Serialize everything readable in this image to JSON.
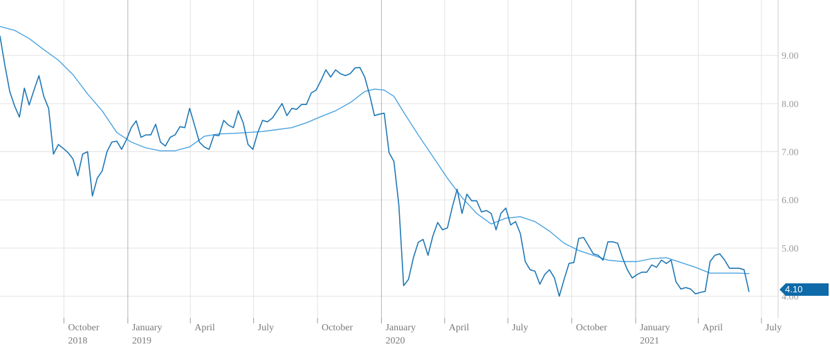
{
  "colors": {
    "weekly": "#1f77b4",
    "average": "#4aa3e0",
    "badge": "#0e6aa8",
    "grid": "#e3e3e3"
  },
  "chart_data": {
    "type": "line",
    "x_ticks": [
      {
        "label": "October",
        "sub": "2018",
        "date": "2018-10-01",
        "year_start": false
      },
      {
        "label": "January",
        "sub": "2019",
        "date": "2019-01-01",
        "year_start": true
      },
      {
        "label": "April",
        "sub": "",
        "date": "2019-04-01",
        "year_start": false
      },
      {
        "label": "July",
        "sub": "",
        "date": "2019-07-01",
        "year_start": false
      },
      {
        "label": "October",
        "sub": "",
        "date": "2019-10-01",
        "year_start": false
      },
      {
        "label": "January",
        "sub": "2020",
        "date": "2020-01-01",
        "year_start": true
      },
      {
        "label": "April",
        "sub": "",
        "date": "2020-04-01",
        "year_start": false
      },
      {
        "label": "July",
        "sub": "",
        "date": "2020-07-01",
        "year_start": false
      },
      {
        "label": "October",
        "sub": "",
        "date": "2020-10-01",
        "year_start": false
      },
      {
        "label": "January",
        "sub": "2021",
        "date": "2021-01-01",
        "year_start": true
      },
      {
        "label": "April",
        "sub": "",
        "date": "2021-04-01",
        "year_start": false
      },
      {
        "label": "July",
        "sub": "",
        "date": "2021-07-01",
        "year_start": false
      }
    ],
    "y_ticks": [
      "4.00",
      "5.00",
      "6.00",
      "7.00",
      "8.00",
      "9.00"
    ],
    "ylim": [
      3.55,
      10.15
    ],
    "xlim": [
      "2018-07-01",
      "2021-07-25"
    ],
    "grid": true,
    "current_value_label": "4.10",
    "series": [
      {
        "key": "weekly",
        "points": [
          [
            "2018-07-01",
            9.4
          ],
          [
            "2018-07-08",
            8.8
          ],
          [
            "2018-07-15",
            8.25
          ],
          [
            "2018-07-22",
            7.95
          ],
          [
            "2018-07-29",
            7.72
          ],
          [
            "2018-08-05",
            8.32
          ],
          [
            "2018-08-12",
            7.97
          ],
          [
            "2018-08-19",
            8.28
          ],
          [
            "2018-08-26",
            8.58
          ],
          [
            "2018-09-02",
            8.15
          ],
          [
            "2018-09-09",
            7.9
          ],
          [
            "2018-09-16",
            6.95
          ],
          [
            "2018-09-23",
            7.15
          ],
          [
            "2018-09-30",
            7.07
          ],
          [
            "2018-10-07",
            6.98
          ],
          [
            "2018-10-14",
            6.85
          ],
          [
            "2018-10-21",
            6.5
          ],
          [
            "2018-10-28",
            6.95
          ],
          [
            "2018-11-04",
            7.0
          ],
          [
            "2018-11-11",
            6.08
          ],
          [
            "2018-11-18",
            6.45
          ],
          [
            "2018-11-25",
            6.6
          ],
          [
            "2018-12-02",
            7.0
          ],
          [
            "2018-12-09",
            7.2
          ],
          [
            "2018-12-16",
            7.22
          ],
          [
            "2018-12-23",
            7.05
          ],
          [
            "2018-12-30",
            7.25
          ],
          [
            "2019-01-06",
            7.5
          ],
          [
            "2019-01-13",
            7.64
          ],
          [
            "2019-01-20",
            7.3
          ],
          [
            "2019-01-27",
            7.35
          ],
          [
            "2019-02-03",
            7.35
          ],
          [
            "2019-02-10",
            7.57
          ],
          [
            "2019-02-17",
            7.2
          ],
          [
            "2019-02-24",
            7.12
          ],
          [
            "2019-03-03",
            7.3
          ],
          [
            "2019-03-10",
            7.35
          ],
          [
            "2019-03-17",
            7.52
          ],
          [
            "2019-03-24",
            7.5
          ],
          [
            "2019-03-31",
            7.9
          ],
          [
            "2019-04-07",
            7.55
          ],
          [
            "2019-04-14",
            7.2
          ],
          [
            "2019-04-21",
            7.1
          ],
          [
            "2019-04-28",
            7.05
          ],
          [
            "2019-05-05",
            7.35
          ],
          [
            "2019-05-12",
            7.33
          ],
          [
            "2019-05-19",
            7.65
          ],
          [
            "2019-05-26",
            7.55
          ],
          [
            "2019-06-02",
            7.5
          ],
          [
            "2019-06-09",
            7.85
          ],
          [
            "2019-06-16",
            7.6
          ],
          [
            "2019-06-23",
            7.15
          ],
          [
            "2019-06-30",
            7.05
          ],
          [
            "2019-07-07",
            7.4
          ],
          [
            "2019-07-14",
            7.65
          ],
          [
            "2019-07-21",
            7.62
          ],
          [
            "2019-07-28",
            7.7
          ],
          [
            "2019-08-04",
            7.85
          ],
          [
            "2019-08-11",
            8.0
          ],
          [
            "2019-08-18",
            7.75
          ],
          [
            "2019-08-25",
            7.9
          ],
          [
            "2019-09-01",
            7.88
          ],
          [
            "2019-09-08",
            7.98
          ],
          [
            "2019-09-15",
            7.98
          ],
          [
            "2019-09-22",
            8.22
          ],
          [
            "2019-09-29",
            8.28
          ],
          [
            "2019-10-06",
            8.48
          ],
          [
            "2019-10-13",
            8.7
          ],
          [
            "2019-10-20",
            8.55
          ],
          [
            "2019-10-27",
            8.7
          ],
          [
            "2019-11-03",
            8.62
          ],
          [
            "2019-11-10",
            8.58
          ],
          [
            "2019-11-17",
            8.62
          ],
          [
            "2019-11-24",
            8.74
          ],
          [
            "2019-12-01",
            8.75
          ],
          [
            "2019-12-08",
            8.55
          ],
          [
            "2019-12-15",
            8.18
          ],
          [
            "2019-12-22",
            7.75
          ],
          [
            "2019-12-29",
            7.78
          ],
          [
            "2020-01-05",
            7.8
          ],
          [
            "2020-01-12",
            6.98
          ],
          [
            "2020-01-19",
            6.8
          ],
          [
            "2020-01-26",
            5.9
          ],
          [
            "2020-02-02",
            4.22
          ],
          [
            "2020-02-09",
            4.35
          ],
          [
            "2020-02-16",
            4.8
          ],
          [
            "2020-02-23",
            5.12
          ],
          [
            "2020-03-01",
            5.18
          ],
          [
            "2020-03-08",
            4.85
          ],
          [
            "2020-03-15",
            5.25
          ],
          [
            "2020-03-22",
            5.53
          ],
          [
            "2020-03-29",
            5.38
          ],
          [
            "2020-04-05",
            5.42
          ],
          [
            "2020-04-12",
            5.85
          ],
          [
            "2020-04-19",
            6.22
          ],
          [
            "2020-04-26",
            5.72
          ],
          [
            "2020-05-03",
            6.12
          ],
          [
            "2020-05-10",
            5.98
          ],
          [
            "2020-05-17",
            5.98
          ],
          [
            "2020-05-24",
            5.75
          ],
          [
            "2020-05-31",
            5.78
          ],
          [
            "2020-06-07",
            5.72
          ],
          [
            "2020-06-14",
            5.38
          ],
          [
            "2020-06-21",
            5.72
          ],
          [
            "2020-06-28",
            5.83
          ],
          [
            "2020-07-05",
            5.48
          ],
          [
            "2020-07-12",
            5.55
          ],
          [
            "2020-07-19",
            5.3
          ],
          [
            "2020-07-26",
            4.72
          ],
          [
            "2020-08-02",
            4.55
          ],
          [
            "2020-08-09",
            4.52
          ],
          [
            "2020-08-16",
            4.25
          ],
          [
            "2020-08-23",
            4.45
          ],
          [
            "2020-08-30",
            4.55
          ],
          [
            "2020-09-06",
            4.38
          ],
          [
            "2020-09-13",
            4.0
          ],
          [
            "2020-09-20",
            4.35
          ],
          [
            "2020-09-27",
            4.68
          ],
          [
            "2020-10-04",
            4.7
          ],
          [
            "2020-10-11",
            5.2
          ],
          [
            "2020-10-18",
            5.22
          ],
          [
            "2020-10-25",
            5.05
          ],
          [
            "2020-11-01",
            4.88
          ],
          [
            "2020-11-08",
            4.85
          ],
          [
            "2020-11-15",
            4.75
          ],
          [
            "2020-11-22",
            5.13
          ],
          [
            "2020-11-29",
            5.13
          ],
          [
            "2020-12-06",
            5.1
          ],
          [
            "2020-12-13",
            4.8
          ],
          [
            "2020-12-20",
            4.55
          ],
          [
            "2020-12-27",
            4.38
          ],
          [
            "2021-01-03",
            4.45
          ],
          [
            "2021-01-10",
            4.5
          ],
          [
            "2021-01-17",
            4.5
          ],
          [
            "2021-01-24",
            4.65
          ],
          [
            "2021-01-31",
            4.6
          ],
          [
            "2021-02-07",
            4.75
          ],
          [
            "2021-02-14",
            4.68
          ],
          [
            "2021-02-21",
            4.75
          ],
          [
            "2021-02-28",
            4.3
          ],
          [
            "2021-03-07",
            4.15
          ],
          [
            "2021-03-14",
            4.18
          ],
          [
            "2021-03-21",
            4.15
          ],
          [
            "2021-03-28",
            4.05
          ],
          [
            "2021-04-04",
            4.08
          ],
          [
            "2021-04-11",
            4.1
          ],
          [
            "2021-04-18",
            4.72
          ],
          [
            "2021-04-25",
            4.85
          ],
          [
            "2021-05-02",
            4.88
          ],
          [
            "2021-05-09",
            4.75
          ],
          [
            "2021-05-16",
            4.58
          ],
          [
            "2021-05-23",
            4.58
          ],
          [
            "2021-05-30",
            4.58
          ],
          [
            "2021-06-06",
            4.55
          ],
          [
            "2021-06-13",
            4.1
          ]
        ]
      },
      {
        "key": "average",
        "points": [
          [
            "2018-07-01",
            9.6
          ],
          [
            "2018-07-22",
            9.52
          ],
          [
            "2018-08-12",
            9.35
          ],
          [
            "2018-09-02",
            9.12
          ],
          [
            "2018-09-23",
            8.9
          ],
          [
            "2018-10-14",
            8.6
          ],
          [
            "2018-11-04",
            8.2
          ],
          [
            "2018-11-25",
            7.85
          ],
          [
            "2018-12-16",
            7.4
          ],
          [
            "2019-01-06",
            7.2
          ],
          [
            "2019-01-27",
            7.08
          ],
          [
            "2019-02-17",
            7.02
          ],
          [
            "2019-03-10",
            7.02
          ],
          [
            "2019-03-31",
            7.1
          ],
          [
            "2019-04-21",
            7.32
          ],
          [
            "2019-05-12",
            7.37
          ],
          [
            "2019-06-02",
            7.38
          ],
          [
            "2019-06-23",
            7.4
          ],
          [
            "2019-07-14",
            7.42
          ],
          [
            "2019-08-04",
            7.46
          ],
          [
            "2019-08-25",
            7.5
          ],
          [
            "2019-09-15",
            7.6
          ],
          [
            "2019-10-06",
            7.73
          ],
          [
            "2019-10-27",
            7.85
          ],
          [
            "2019-11-17",
            8.02
          ],
          [
            "2019-12-08",
            8.25
          ],
          [
            "2019-12-22",
            8.3
          ],
          [
            "2020-01-05",
            8.28
          ],
          [
            "2020-01-19",
            8.15
          ],
          [
            "2020-02-02",
            7.82
          ],
          [
            "2020-02-23",
            7.35
          ],
          [
            "2020-03-15",
            6.9
          ],
          [
            "2020-04-05",
            6.45
          ],
          [
            "2020-04-26",
            6.05
          ],
          [
            "2020-05-17",
            5.72
          ],
          [
            "2020-06-07",
            5.5
          ],
          [
            "2020-06-28",
            5.62
          ],
          [
            "2020-07-19",
            5.65
          ],
          [
            "2020-08-09",
            5.55
          ],
          [
            "2020-08-30",
            5.35
          ],
          [
            "2020-09-20",
            5.1
          ],
          [
            "2020-10-11",
            4.95
          ],
          [
            "2020-11-01",
            4.85
          ],
          [
            "2020-11-22",
            4.75
          ],
          [
            "2020-12-13",
            4.72
          ],
          [
            "2021-01-03",
            4.72
          ],
          [
            "2021-01-24",
            4.78
          ],
          [
            "2021-02-14",
            4.8
          ],
          [
            "2021-03-07",
            4.7
          ],
          [
            "2021-03-28",
            4.6
          ],
          [
            "2021-04-18",
            4.48
          ],
          [
            "2021-05-09",
            4.48
          ],
          [
            "2021-05-30",
            4.48
          ],
          [
            "2021-06-13",
            4.47
          ]
        ]
      }
    ]
  }
}
